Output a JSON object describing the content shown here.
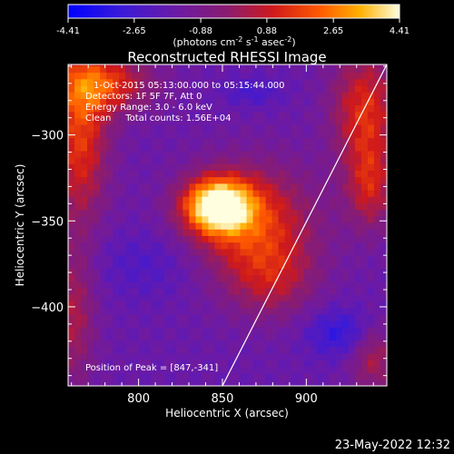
{
  "colorbar": {
    "tick_labels": [
      "-4.41",
      "-2.65",
      "-0.88",
      "0.88",
      "2.65",
      "4.41"
    ],
    "tick_values": [
      -4.41,
      -2.65,
      -0.88,
      0.88,
      2.65,
      4.41
    ],
    "range": [
      -4.41,
      4.41
    ],
    "units_prefix": "(photons cm",
    "units_sup1": "-2",
    "units_mid1": " s",
    "units_sup2": "-1",
    "units_mid2": " asec",
    "units_sup3": "-2",
    "units_suffix": ")"
  },
  "chart_data": {
    "type": "heatmap",
    "title": "Reconstructed RHESSI Image",
    "xlabel": "Heliocentric X (arcsec)",
    "ylabel": "Heliocentric Y (arcsec)",
    "xlim": [
      758,
      948
    ],
    "ylim": [
      -446,
      -259
    ],
    "x_ticks": [
      800,
      850,
      900
    ],
    "x_tick_labels": [
      "800",
      "850",
      "900"
    ],
    "y_ticks": [
      -300,
      -350,
      -400
    ],
    "y_tick_labels": [
      "−300",
      "−350",
      "−400"
    ],
    "colormap": "blue-purple-red-yellow-white",
    "vmin": -4.41,
    "vmax": 4.41,
    "annotations": [
      "1-Oct-2015 05:13:00.000 to 05:15:44.000",
      "Detectors: 1F 5F 7F, Att 0",
      "Energy Range: 3.0 - 6.0 keV",
      "Clean     Total counts: 1.56E+04"
    ],
    "peak_label": "Position of Peak = [847,-341]",
    "peak_position": [
      847,
      -341
    ],
    "limb_line": [
      [
        850,
        -446
      ],
      [
        920,
        -309
      ],
      [
        948,
        -259
      ]
    ]
  },
  "footer": {
    "timestamp": "23-May-2022 12:32"
  }
}
